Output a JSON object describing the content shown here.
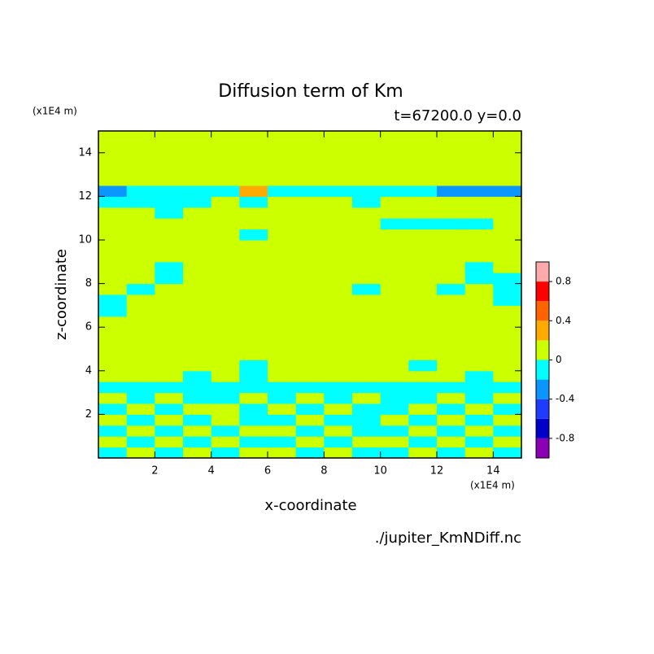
{
  "chart_data": {
    "type": "contour",
    "title": "Diffusion term of Km",
    "subtitle": "t=67200.0 y=0.0",
    "x_unit": "(x1E4 m)",
    "y_unit": "(x1E4 m)",
    "xlabel": "x-coordinate",
    "ylabel": "z-coordinate",
    "source": "./jupiter_KmNDiff.nc",
    "xlim": [
      0,
      15
    ],
    "ylim": [
      0,
      15
    ],
    "xticks": [
      2,
      4,
      6,
      8,
      10,
      12,
      14
    ],
    "yticks": [
      2,
      4,
      6,
      8,
      10,
      12,
      14
    ],
    "levels": [
      -1,
      -0.8,
      -0.6,
      -0.4,
      -0.2,
      0,
      0.2,
      0.4,
      0.6,
      0.8,
      1
    ],
    "colors": [
      "#8c00b4",
      "#0000c8",
      "#1e3cff",
      "#0a96ff",
      "#00ffff",
      "#ccff00",
      "#ffaa00",
      "#ff6400",
      "#ff0000",
      "#ffaaaa"
    ],
    "colorbar_ticks": [
      -0.8,
      -0.4,
      0,
      0.4,
      0.8
    ],
    "field": {
      "x": [
        0.5,
        1.5,
        2.5,
        3.5,
        4.5,
        5.5,
        6.5,
        7.5,
        8.5,
        9.5,
        10.5,
        11.5,
        12.5,
        13.5,
        14.5
      ],
      "y": [
        0.25,
        0.75,
        1.25,
        1.75,
        2.25,
        2.75,
        3.25,
        3.75,
        4.25,
        4.75,
        5.25,
        5.75,
        6.25,
        6.75,
        7.25,
        7.75,
        8.25,
        8.75,
        9.25,
        9.75,
        10.25,
        10.75,
        11.25,
        11.75,
        12.25,
        12.75,
        13.25,
        13.75,
        14.25,
        14.75
      ],
      "values": [
        [
          -0.2,
          0,
          -0.2,
          0,
          -0.2,
          0,
          0,
          -0.2,
          0,
          -0.2,
          -0.2,
          0,
          -0.2,
          0,
          -0.2
        ],
        [
          0,
          -0.2,
          0,
          -0.2,
          0,
          -0.2,
          -0.2,
          0,
          -0.2,
          0,
          0,
          -0.2,
          0,
          -0.2,
          0
        ],
        [
          -0.2,
          0,
          -0.2,
          0,
          -0.2,
          0,
          0,
          -0.2,
          0,
          -0.2,
          -0.2,
          0,
          -0.2,
          0,
          -0.2
        ],
        [
          0,
          -0.2,
          0,
          -0.2,
          0,
          -0.2,
          -0.2,
          0,
          -0.2,
          -0.2,
          0,
          -0.2,
          0,
          -0.2,
          0
        ],
        [
          -0.2,
          0,
          -0.2,
          0,
          0,
          -0.2,
          0,
          -0.2,
          0,
          -0.2,
          -0.2,
          0,
          -0.2,
          0,
          -0.2
        ],
        [
          0,
          -0.2,
          0,
          -0.2,
          -0.2,
          0,
          -0.2,
          0,
          -0.2,
          0,
          -0.2,
          -0.2,
          0,
          -0.2,
          0
        ],
        [
          -0.2,
          -0.2,
          -0.2,
          -0.2,
          -0.2,
          -0.2,
          -0.2,
          -0.2,
          -0.2,
          -0.2,
          -0.2,
          -0.2,
          -0.2,
          -0.2,
          -0.2
        ],
        [
          0,
          0,
          0,
          -0.2,
          0,
          -0.2,
          0,
          0,
          0,
          0,
          0,
          0,
          0,
          -0.2,
          0
        ],
        [
          0,
          0,
          0,
          0,
          0,
          -0.2,
          0,
          0,
          0,
          0,
          0,
          -0.2,
          0,
          0,
          0
        ],
        [
          0,
          0,
          0,
          0,
          0,
          0,
          0,
          0,
          0,
          0,
          0,
          0,
          0,
          0,
          0
        ],
        [
          0,
          0,
          0,
          0,
          0,
          0,
          0,
          0,
          0,
          0,
          0,
          0,
          0,
          0,
          0
        ],
        [
          0,
          0,
          0,
          0,
          0,
          0,
          0,
          0,
          0,
          0,
          0,
          0,
          0,
          0,
          0
        ],
        [
          0,
          0,
          0,
          0,
          0,
          0,
          0,
          0,
          0,
          0,
          0,
          0,
          0,
          0,
          0
        ],
        [
          -0.2,
          0,
          0,
          0,
          0,
          0,
          0,
          0,
          0,
          0,
          0,
          0,
          0,
          0,
          0
        ],
        [
          -0.2,
          0,
          0,
          0,
          0,
          0,
          0,
          0,
          0,
          0,
          0,
          0,
          0,
          0,
          -0.2
        ],
        [
          0,
          -0.2,
          0,
          0,
          0,
          0,
          0,
          0,
          0,
          -0.2,
          0,
          0,
          -0.2,
          0,
          -0.2
        ],
        [
          0,
          0,
          -0.2,
          0,
          0,
          0,
          0,
          0,
          0,
          0,
          0,
          0,
          0,
          -0.2,
          -0.2
        ],
        [
          0,
          0,
          -0.2,
          0,
          0,
          0,
          0,
          0,
          0,
          0,
          0,
          0,
          0,
          -0.2,
          0
        ],
        [
          0,
          0,
          0,
          0,
          0,
          0,
          0,
          0,
          0,
          0,
          0,
          0,
          0,
          0,
          0
        ],
        [
          0,
          0,
          0,
          0,
          0,
          0,
          0,
          0,
          0,
          0,
          0,
          0,
          0,
          0,
          0
        ],
        [
          0,
          0,
          0,
          0,
          0,
          -0.2,
          0,
          0,
          0,
          0,
          0,
          0,
          0,
          0,
          0
        ],
        [
          0,
          0,
          0,
          0,
          0,
          0,
          0,
          0,
          0,
          0,
          -0.2,
          -0.2,
          -0.2,
          -0.2,
          0
        ],
        [
          0,
          0,
          -0.2,
          0,
          0,
          0,
          0,
          0,
          0,
          0,
          0,
          0,
          0,
          0,
          0
        ],
        [
          -0.2,
          -0.2,
          -0.2,
          -0.2,
          0,
          -0.2,
          0,
          0,
          0,
          -0.2,
          0,
          0,
          0,
          0,
          0
        ],
        [
          -0.4,
          -0.2,
          -0.2,
          -0.2,
          -0.2,
          0.2,
          -0.2,
          -0.2,
          -0.2,
          -0.2,
          -0.2,
          -0.2,
          -0.4,
          -0.4,
          -0.4
        ],
        [
          0,
          0,
          0,
          0,
          0,
          0,
          0,
          0,
          0,
          0,
          0,
          0,
          0,
          0,
          0
        ],
        [
          0,
          0,
          0,
          0,
          0,
          0,
          0,
          0,
          0,
          0,
          0,
          0,
          0,
          0,
          0
        ],
        [
          0,
          0,
          0,
          0,
          0,
          0,
          0,
          0,
          0,
          0,
          0,
          0,
          0,
          0,
          0
        ],
        [
          0,
          0,
          0,
          0,
          0,
          0,
          0,
          0,
          0,
          0,
          0,
          0,
          0,
          0,
          0
        ],
        [
          0,
          0,
          0,
          0,
          0,
          0,
          0,
          0,
          0,
          0,
          0,
          0,
          0,
          0,
          0
        ]
      ]
    }
  }
}
